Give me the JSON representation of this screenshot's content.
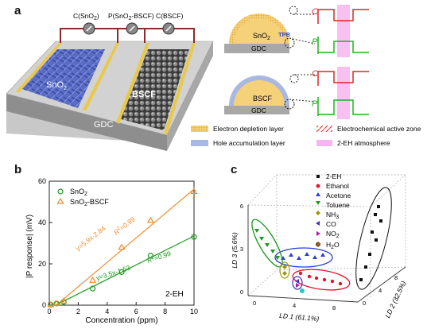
{
  "panels": {
    "a": "a",
    "b": "b",
    "c": "c"
  },
  "panel_a": {
    "meters": [
      "C(SnO",
      "2",
      ")",
      "P(SnO",
      "2",
      "-BSCF)",
      "C(BSCF)"
    ],
    "meter_labels": {
      "c_sno2_main": "C(SnO",
      "c_sno2_sub": "2",
      "c_sno2_end": ")",
      "p_main": "P(SnO",
      "p_sub": "2",
      "p_end": "-BSCF)",
      "c_bscf": "C(BSCF)"
    },
    "sno2_text": "SnO",
    "sno2_sub": "2",
    "bscf_text": "BSCF",
    "gdc_text": "GDC",
    "schematic": {
      "sno2_label": "SnO",
      "sno2_sub": "2",
      "gdc_label": "GDC",
      "tpb": "TPB",
      "bscf_label": "BSCF",
      "gdc_label2": "GDC",
      "c_letter": "C",
      "p_letter": "P"
    },
    "legend": {
      "electron_depletion": "Electron depletion layer",
      "electrochemical": "Electrochemical active zone",
      "hole_accumulation": "Hole accumulation layer",
      "atmosphere": "2-EH atmosphere"
    },
    "colors": {
      "sno2_dome": "#f5d27a",
      "depletion": "#e8a93a",
      "hole_layer": "#a9b8e0",
      "atmosphere": "#f7b4ef",
      "c_trace": "#d62828",
      "p_trace": "#1fb31f"
    }
  },
  "chart_data": [
    {
      "type": "scatter",
      "ylabel": "|P response| (mV)",
      "xlabel": "Concentration (ppm)",
      "xlim": [
        0,
        10
      ],
      "ylim": [
        0,
        60
      ],
      "xticks": [
        0,
        2,
        4,
        6,
        8,
        10
      ],
      "yticks": [
        0,
        20,
        40,
        60
      ],
      "annotation": "2-EH",
      "series": [
        {
          "name": "SnO2",
          "name_main": "SnO",
          "name_sub": "2",
          "marker": "circle",
          "color": "#1a9a1a",
          "x": [
            0.1,
            0.5,
            1,
            3,
            5,
            7,
            10
          ],
          "y": [
            0.2,
            0.8,
            1.6,
            8,
            16,
            24,
            33
          ],
          "fit": {
            "slope": 3.5,
            "intercept": -1.53,
            "label": "y=3.5x-1.53",
            "r2_label": "R",
            "r2_sup": "2",
            "r2_value": "=0.99"
          }
        },
        {
          "name": "SnO2-BSCF",
          "name_main": "SnO",
          "name_sub": "2",
          "name_end": "-BSCF",
          "marker": "triangle",
          "color": "#f08c2a",
          "x": [
            0.1,
            0.5,
            1,
            3,
            5,
            7,
            10
          ],
          "y": [
            0.2,
            0.8,
            2,
            12,
            28,
            41,
            55
          ],
          "fit": {
            "slope": 5.9,
            "intercept": -2.84,
            "label": "y=5.9x-2.84",
            "r2_label": "R",
            "r2_sup": "2",
            "r2_value": "=0.99"
          }
        }
      ]
    },
    {
      "type": "scatter",
      "axes": {
        "x_label": "LD 1 (61.1%)",
        "y_label": "LD 2 (32.5%)",
        "z_label": "LD 3 (5.6%)"
      },
      "ticks": {
        "x": [
          "0",
          "4",
          "8"
        ],
        "y": [
          "0",
          "4",
          "8"
        ],
        "z": [
          "0",
          "3",
          "6"
        ]
      },
      "legend": [
        {
          "name": "2-EH",
          "marker": "square",
          "color": "#111111"
        },
        {
          "name": "Ethanol",
          "marker": "circle",
          "color": "#e0142a"
        },
        {
          "name": "Acetone",
          "marker": "triangle-up",
          "color": "#2b3fd6"
        },
        {
          "name": "Toluene",
          "marker": "triangle-down",
          "color": "#1a9a1a"
        },
        {
          "name": "NH3",
          "name_main": "NH",
          "name_sub": "3",
          "marker": "diamond",
          "color": "#9a9a10"
        },
        {
          "name": "CO",
          "marker": "triangle-left",
          "color": "#4a2abf"
        },
        {
          "name": "NO2",
          "name_main": "NO",
          "name_sub": "2",
          "marker": "triangle-right",
          "color": "#b01aa0"
        },
        {
          "name": "H2O",
          "name_main": "H",
          "name_sub": "2",
          "name_end": "O",
          "marker": "hexagon",
          "color": "#8a5a2a"
        }
      ]
    }
  ]
}
